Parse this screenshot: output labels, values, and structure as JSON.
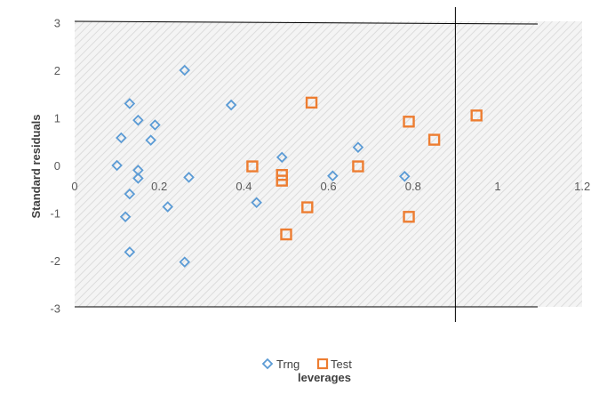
{
  "chart_data": {
    "type": "scatter",
    "xlabel": "leverages",
    "ylabel": "Standard residuals",
    "xlim": [
      0,
      1.2
    ],
    "ylim": [
      -3,
      3
    ],
    "x_ticks": [
      "0",
      "0.2",
      "0.4",
      "0.6",
      "0.8",
      "1",
      "1.2"
    ],
    "y_ticks": [
      "3",
      "2",
      "1",
      "0",
      "-1",
      "-2",
      "-3"
    ],
    "legend_position": "bottom",
    "vertical_reference_line_x": 0.9,
    "series": [
      {
        "name": "Trng",
        "marker": "diamond",
        "color": "#5B9BD5",
        "points": [
          [
            0.26,
            2.0
          ],
          [
            0.13,
            1.3
          ],
          [
            0.15,
            0.95
          ],
          [
            0.19,
            0.85
          ],
          [
            0.11,
            0.58
          ],
          [
            0.18,
            0.53
          ],
          [
            0.37,
            1.27
          ],
          [
            0.1,
            0.0
          ],
          [
            0.15,
            -0.1
          ],
          [
            0.15,
            -0.27
          ],
          [
            0.27,
            -0.25
          ],
          [
            0.13,
            -0.6
          ],
          [
            0.22,
            -0.87
          ],
          [
            0.12,
            -1.08
          ],
          [
            0.13,
            -1.82
          ],
          [
            0.26,
            -2.03
          ],
          [
            0.43,
            -0.78
          ],
          [
            0.49,
            0.17
          ],
          [
            0.61,
            -0.22
          ],
          [
            0.67,
            0.38
          ],
          [
            0.78,
            -0.23
          ]
        ]
      },
      {
        "name": "Test",
        "marker": "square",
        "color": "#ED7D31",
        "points": [
          [
            0.56,
            1.32
          ],
          [
            0.42,
            -0.02
          ],
          [
            0.49,
            -0.2
          ],
          [
            0.49,
            -0.32
          ],
          [
            0.55,
            -0.88
          ],
          [
            0.5,
            -1.45
          ],
          [
            0.67,
            -0.02
          ],
          [
            0.79,
            0.92
          ],
          [
            0.85,
            0.54
          ],
          [
            0.95,
            1.05
          ],
          [
            0.79,
            -1.08
          ]
        ]
      }
    ]
  }
}
